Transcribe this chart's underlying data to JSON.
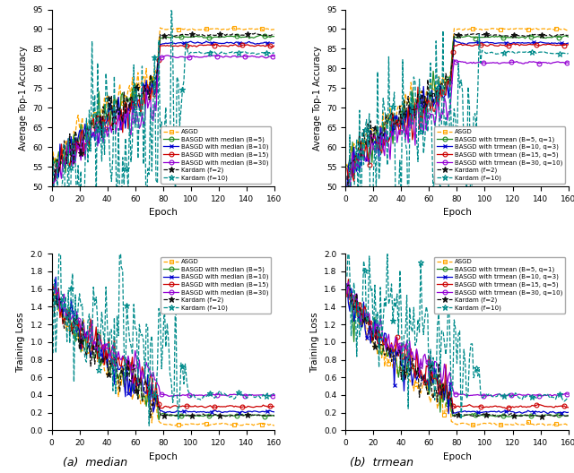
{
  "fig_width": 6.4,
  "fig_height": 5.28,
  "dpi": 100,
  "subplot_titles_bottom": [
    "(a)  median",
    "(b)  trmean"
  ],
  "colors": {
    "ASGD": "#FFA500",
    "B5": "#228B22",
    "B10": "#0000CD",
    "B15": "#CC0000",
    "B30": "#9400D3",
    "Kardam_f2": "#111111",
    "Kardam_f10": "#008B8B"
  },
  "acc_ylim": [
    50,
    95
  ],
  "loss_ylim": [
    0,
    2.0
  ],
  "acc_yticks": [
    50,
    55,
    60,
    65,
    70,
    75,
    80,
    85,
    90,
    95
  ],
  "loss_yticks": [
    0,
    0.2,
    0.4,
    0.6,
    0.8,
    1.0,
    1.2,
    1.4,
    1.6,
    1.8,
    2.0
  ],
  "xticks": [
    0,
    20,
    40,
    60,
    80,
    100,
    120,
    140,
    160
  ]
}
